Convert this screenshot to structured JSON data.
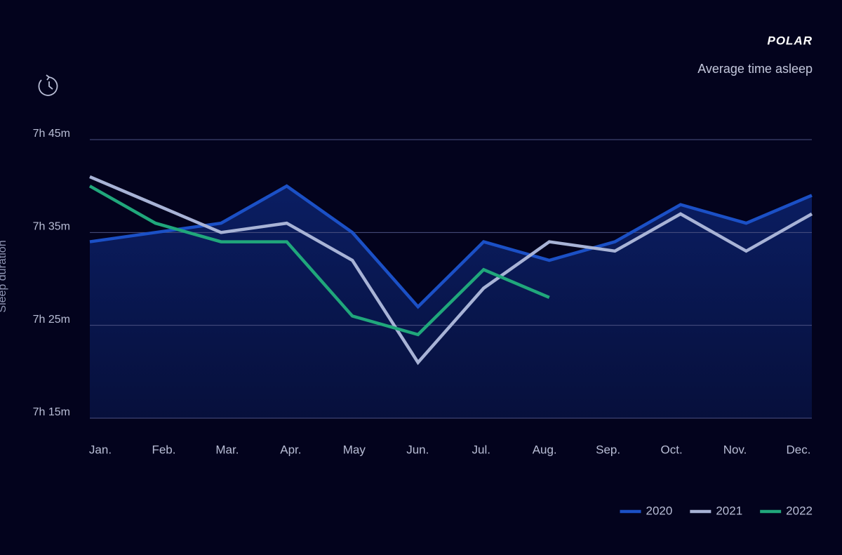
{
  "chart_data": {
    "type": "line",
    "brand": "POLAR",
    "title": "Average time asleep",
    "y_label": "Sleep duration",
    "categories": [
      "Jan.",
      "Feb.",
      "Mar.",
      "Apr.",
      "May",
      "Jun.",
      "Jul.",
      "Aug.",
      "Sep.",
      "Oct.",
      "Nov.",
      "Dec."
    ],
    "series": [
      {
        "name": "2020",
        "color": "#1b50c6",
        "values": [
          454,
          455,
          456,
          460,
          455,
          447,
          454,
          452,
          454,
          458,
          456,
          459
        ]
      },
      {
        "name": "2021",
        "color": "#a8b3d6",
        "values": [
          461,
          458,
          455,
          456,
          452,
          441,
          449,
          454,
          453,
          457,
          453,
          457
        ]
      },
      {
        "name": "2022",
        "color": "#20a77b",
        "values": [
          460,
          456,
          454,
          454,
          446,
          444,
          451,
          448,
          null,
          null,
          null,
          null
        ]
      }
    ],
    "ylim": [
      435,
      465
    ],
    "yticks": [
      {
        "value": 435,
        "label": "7h 15m"
      },
      {
        "value": 445,
        "label": "7h 25m"
      },
      {
        "value": 455,
        "label": "7h 35m"
      },
      {
        "value": 465,
        "label": "7h 45m"
      }
    ],
    "grid": true,
    "area_under_first_series": true,
    "legend_position": "bottom-right"
  }
}
